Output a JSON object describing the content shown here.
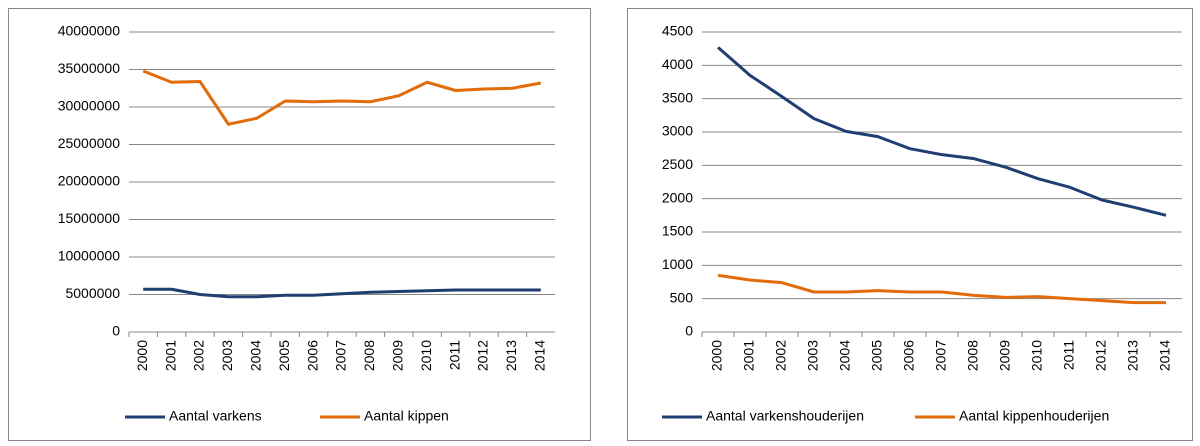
{
  "chart_data": [
    {
      "type": "line",
      "categories": [
        "2000",
        "2001",
        "2002",
        "2003",
        "2004",
        "2005",
        "2006",
        "2007",
        "2008",
        "2009",
        "2010",
        "2011",
        "2012",
        "2013",
        "2014"
      ],
      "series": [
        {
          "name": "Aantal varkens",
          "color": "#1f3f73",
          "values": [
            5700000,
            5700000,
            5000000,
            4700000,
            4700000,
            4900000,
            4900000,
            5100000,
            5300000,
            5400000,
            5500000,
            5600000,
            5600000,
            5600000,
            5600000
          ]
        },
        {
          "name": "Aantal kippen",
          "color": "#e36c0a",
          "values": [
            34800000,
            33300000,
            33400000,
            27700000,
            28500000,
            30800000,
            30700000,
            30800000,
            30700000,
            31500000,
            33300000,
            32200000,
            32400000,
            32500000,
            33200000
          ]
        }
      ],
      "ylim": [
        0,
        40000000
      ],
      "yticks": [
        0,
        5000000,
        10000000,
        15000000,
        20000000,
        25000000,
        30000000,
        35000000,
        40000000
      ],
      "grid": true,
      "legend": "bottom"
    },
    {
      "type": "line",
      "categories": [
        "2000",
        "2001",
        "2002",
        "2003",
        "2004",
        "2005",
        "2006",
        "2007",
        "2008",
        "2009",
        "2010",
        "2011",
        "2012",
        "2013",
        "2014"
      ],
      "series": [
        {
          "name": "Aantal varkenshouderijen",
          "color": "#1f3f73",
          "values": [
            4270,
            3850,
            3530,
            3200,
            3010,
            2930,
            2750,
            2660,
            2600,
            2470,
            2300,
            2170,
            1980,
            1870,
            1750
          ]
        },
        {
          "name": "Aantal kippenhouderijen",
          "color": "#e36c0a",
          "values": [
            850,
            780,
            740,
            600,
            600,
            620,
            600,
            600,
            550,
            520,
            530,
            500,
            470,
            440,
            440
          ]
        }
      ],
      "ylim": [
        0,
        4500
      ],
      "yticks": [
        0,
        500,
        1000,
        1500,
        2000,
        2500,
        3000,
        3500,
        4000,
        4500
      ],
      "grid": true,
      "legend": "bottom"
    }
  ]
}
